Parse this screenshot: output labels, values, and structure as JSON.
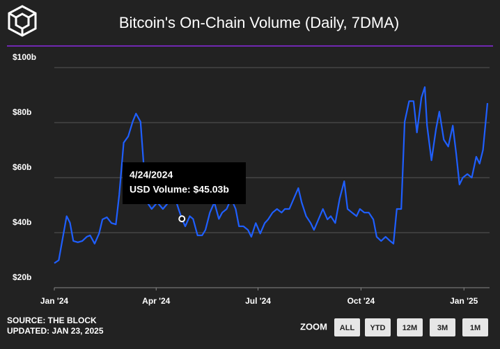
{
  "chart_data": {
    "type": "line",
    "title": "Bitcoin's On-Chain Volume (Daily, 7DMA)",
    "source": "SOURCE: THE BLOCK",
    "updated": "UPDATED: JAN 23, 2025",
    "zoom_label": "ZOOM",
    "zoom_buttons": [
      "ALL",
      "YTD",
      "12M",
      "3M",
      "1M"
    ],
    "x": [
      "2024-01-01",
      "2024-01-05",
      "2024-01-08",
      "2024-01-12",
      "2024-01-15",
      "2024-01-18",
      "2024-01-22",
      "2024-01-26",
      "2024-01-30",
      "2024-02-02",
      "2024-02-06",
      "2024-02-10",
      "2024-02-13",
      "2024-02-17",
      "2024-02-21",
      "2024-02-25",
      "2024-02-28",
      "2024-03-03",
      "2024-03-07",
      "2024-03-11",
      "2024-03-14",
      "2024-03-18",
      "2024-03-21",
      "2024-03-24",
      "2024-03-28",
      "2024-04-02",
      "2024-04-07",
      "2024-04-12",
      "2024-04-17",
      "2024-04-21",
      "2024-04-24",
      "2024-04-27",
      "2024-05-01",
      "2024-05-04",
      "2024-05-08",
      "2024-05-12",
      "2024-05-15",
      "2024-05-19",
      "2024-05-23",
      "2024-05-27",
      "2024-05-30",
      "2024-06-03",
      "2024-06-07",
      "2024-06-11",
      "2024-06-14",
      "2024-06-18",
      "2024-06-22",
      "2024-06-25",
      "2024-06-29",
      "2024-07-03",
      "2024-07-07",
      "2024-07-10",
      "2024-07-14",
      "2024-07-18",
      "2024-07-22",
      "2024-07-25",
      "2024-07-29",
      "2024-08-02",
      "2024-08-06",
      "2024-08-09",
      "2024-08-13",
      "2024-08-17",
      "2024-08-20",
      "2024-08-24",
      "2024-08-28",
      "2024-09-01",
      "2024-09-04",
      "2024-09-08",
      "2024-09-12",
      "2024-09-16",
      "2024-09-19",
      "2024-09-23",
      "2024-09-27",
      "2024-09-30",
      "2024-10-04",
      "2024-10-08",
      "2024-10-12",
      "2024-10-15",
      "2024-10-19",
      "2024-10-23",
      "2024-10-27",
      "2024-10-30",
      "2024-11-02",
      "2024-11-06",
      "2024-11-09",
      "2024-11-13",
      "2024-11-17",
      "2024-11-20",
      "2024-11-24",
      "2024-11-27",
      "2024-11-29",
      "2024-12-03",
      "2024-12-07",
      "2024-12-10",
      "2024-12-14",
      "2024-12-18",
      "2024-12-22",
      "2024-12-25",
      "2024-12-28",
      "2024-12-31",
      "2025-01-04",
      "2025-01-08",
      "2025-01-12",
      "2025-01-15",
      "2025-01-18",
      "2025-01-22"
    ],
    "series": [
      {
        "name": "USD Volume",
        "color": "#1f5fff",
        "values": [
          28.9,
          30,
          37,
          46,
          43.6,
          37,
          36.5,
          37,
          38.5,
          39,
          36,
          39.7,
          44.8,
          45.6,
          43.5,
          43,
          53.7,
          72.7,
          75,
          80.3,
          83.3,
          80.3,
          63.8,
          51,
          48.6,
          51,
          48.6,
          51,
          53.7,
          48.6,
          45.03,
          42.3,
          46,
          45,
          39,
          39,
          41,
          47.3,
          51,
          45,
          47.3,
          48.6,
          52.4,
          48.6,
          42.3,
          42.3,
          41,
          38.5,
          43.5,
          39.7,
          43.5,
          44.8,
          47.3,
          48.6,
          47.3,
          48.6,
          48.6,
          52.4,
          56.2,
          51,
          46,
          43.5,
          41,
          44.8,
          48.6,
          44.8,
          46,
          43.5,
          52.4,
          58.7,
          48.6,
          47.3,
          46,
          48.6,
          47.3,
          47.3,
          44.8,
          38.5,
          37,
          38.5,
          37,
          36,
          48.6,
          48.6,
          80.3,
          87.8,
          87.8,
          76.4,
          89.1,
          92.9,
          79,
          66.3,
          77.6,
          84,
          73.8,
          71.3,
          78.9,
          68.9,
          57.5,
          60,
          61.3,
          60,
          67.6,
          65.1,
          70.1,
          87.1
        ]
      }
    ],
    "tooltip": {
      "x": "2024-04-24",
      "value": 45.03,
      "date_label": "4/24/2024",
      "text": "USD Volume: $45.03b"
    },
    "xlim": [
      "2024-01-01",
      "2025-01-22"
    ],
    "xticks": [
      {
        "value": "2024-01-01",
        "label": "Jan '24"
      },
      {
        "value": "2024-04-01",
        "label": "Apr '24"
      },
      {
        "value": "2024-07-01",
        "label": "Jul '24"
      },
      {
        "value": "2024-10-01",
        "label": "Oct '24"
      },
      {
        "value": "2025-01-01",
        "label": "Jan '25"
      }
    ],
    "ylim": [
      20,
      100
    ],
    "yticks": [
      {
        "value": 20,
        "label": "$20b"
      },
      {
        "value": 40,
        "label": "$40b"
      },
      {
        "value": 60,
        "label": "$60b"
      },
      {
        "value": 80,
        "label": "$80b"
      },
      {
        "value": 100,
        "label": "$100b"
      }
    ],
    "grid": true
  }
}
